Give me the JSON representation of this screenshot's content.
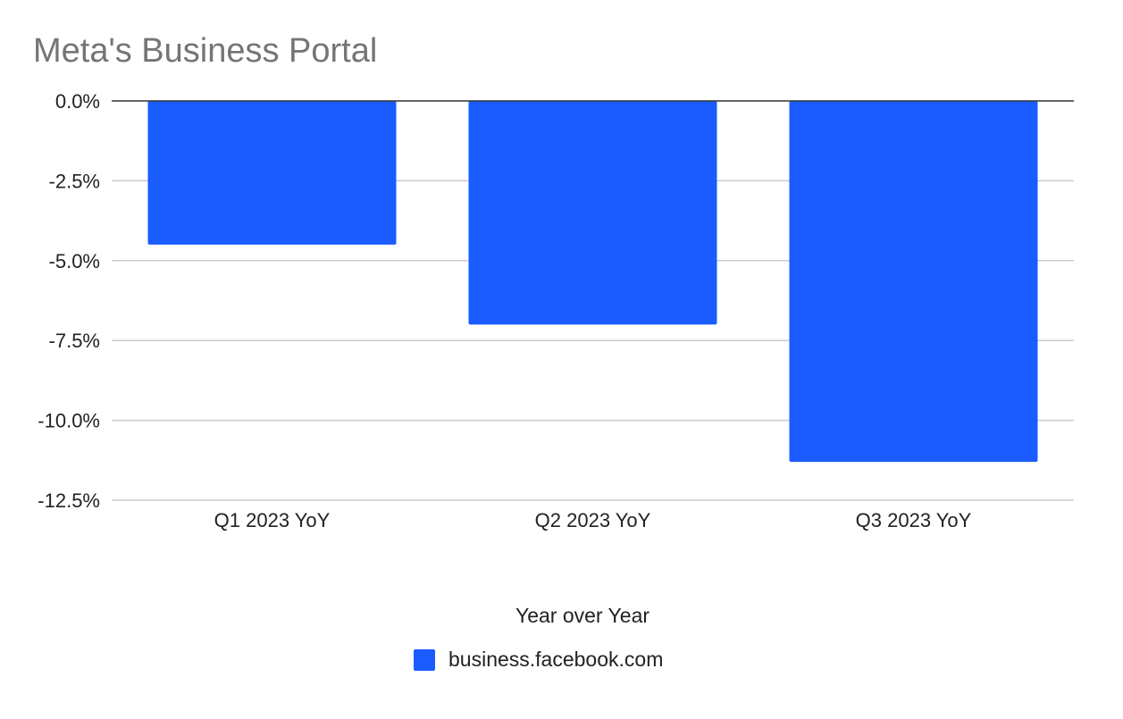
{
  "chart_data": {
    "type": "bar",
    "title": "Meta's Business Portal",
    "xlabel": "Year over Year",
    "ylabel": "",
    "categories": [
      "Q1 2023 YoY",
      "Q2 2023 YoY",
      "Q3 2023 YoY"
    ],
    "series": [
      {
        "name": "business.facebook.com",
        "values": [
          -4.5,
          -7.0,
          -11.3
        ],
        "color": "#1a5cff"
      }
    ],
    "ylim": [
      -12.5,
      0
    ],
    "yticks": [
      0,
      -2.5,
      -5,
      -7.5,
      -10,
      -12.5
    ],
    "ytick_labels": [
      "0.0%",
      "-2.5%",
      "-5.0%",
      "-7.5%",
      "-10.0%",
      "-12.5%"
    ],
    "grid": true,
    "legend_position": "bottom"
  }
}
